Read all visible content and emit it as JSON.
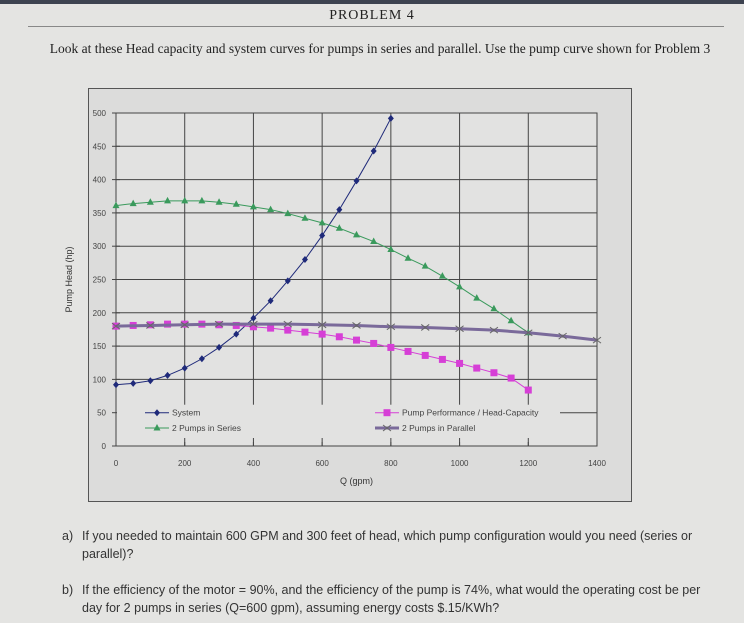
{
  "header": {
    "title": "PROBLEM 4"
  },
  "intro": "Look at these Head capacity and system curves for pumps in series and parallel.  Use the pump curve shown for Problem 3",
  "chart_data": {
    "type": "line",
    "title": "",
    "xlabel": "Q (gpm)",
    "ylabel": "Pump Head (hp)",
    "xlim": [
      0,
      1400
    ],
    "ylim": [
      0,
      500
    ],
    "xticks": [
      "0",
      "200",
      "400",
      "600",
      "800",
      "1000",
      "1200",
      "1400"
    ],
    "yticks": [
      "0",
      "50",
      "100",
      "150",
      "200",
      "250",
      "300",
      "350",
      "400",
      "450",
      "500"
    ],
    "grid": true,
    "legend_position": "bottom-inside",
    "series": [
      {
        "name": "System",
        "color": "#1f2a7a",
        "marker": "diamond",
        "x": [
          0,
          50,
          100,
          150,
          200,
          250,
          300,
          350,
          400,
          450,
          500,
          550,
          600,
          650,
          700,
          750,
          800
        ],
        "y": [
          92,
          94,
          98,
          106,
          117,
          131,
          148,
          168,
          192,
          218,
          248,
          280,
          316,
          355,
          398,
          443,
          492
        ]
      },
      {
        "name": "Pump Performance /  Head-Capacity",
        "color": "#d63fd6",
        "marker": "square",
        "x": [
          0,
          50,
          100,
          150,
          200,
          250,
          300,
          350,
          400,
          450,
          500,
          550,
          600,
          650,
          700,
          750,
          800,
          850,
          900,
          950,
          1000,
          1050,
          1100,
          1150,
          1200
        ],
        "y": [
          180,
          181,
          182,
          183,
          183,
          183,
          182,
          181,
          179,
          177,
          174,
          171,
          168,
          164,
          159,
          154,
          148,
          142,
          136,
          130,
          124,
          117,
          110,
          102,
          84
        ]
      },
      {
        "name": "2 Pumps in Series",
        "color": "#3a9a5c",
        "marker": "triangle",
        "x": [
          0,
          50,
          100,
          150,
          200,
          250,
          300,
          350,
          400,
          450,
          500,
          550,
          600,
          650,
          700,
          750,
          800,
          850,
          900,
          950,
          1000,
          1050,
          1100,
          1150,
          1200
        ],
        "y": [
          361,
          364,
          366,
          368,
          368,
          368,
          366,
          363,
          359,
          355,
          349,
          342,
          335,
          327,
          317,
          307,
          295,
          282,
          270,
          255,
          239,
          222,
          206,
          188,
          170
        ]
      },
      {
        "name": "2 Pumps in Parallel",
        "color": "#7a6a9a",
        "marker": "x",
        "x": [
          0,
          100,
          200,
          300,
          400,
          500,
          600,
          700,
          800,
          900,
          1000,
          1100,
          1200,
          1300,
          1400
        ],
        "y": [
          180,
          181,
          182,
          183,
          183,
          183,
          182,
          181,
          179,
          178,
          176,
          174,
          170,
          165,
          159
        ]
      }
    ]
  },
  "questions": [
    {
      "label": "a)",
      "text": "If you needed to maintain 600 GPM and 300 feet of head, which pump configuration would you need (series or parallel)?"
    },
    {
      "label": "b)",
      "text": "If the efficiency of the motor = 90%, and the efficiency of the pump is 74%, what would the operating cost be per day for 2 pumps in series (Q=600 gpm), assuming energy costs $.15/KWh?"
    }
  ]
}
